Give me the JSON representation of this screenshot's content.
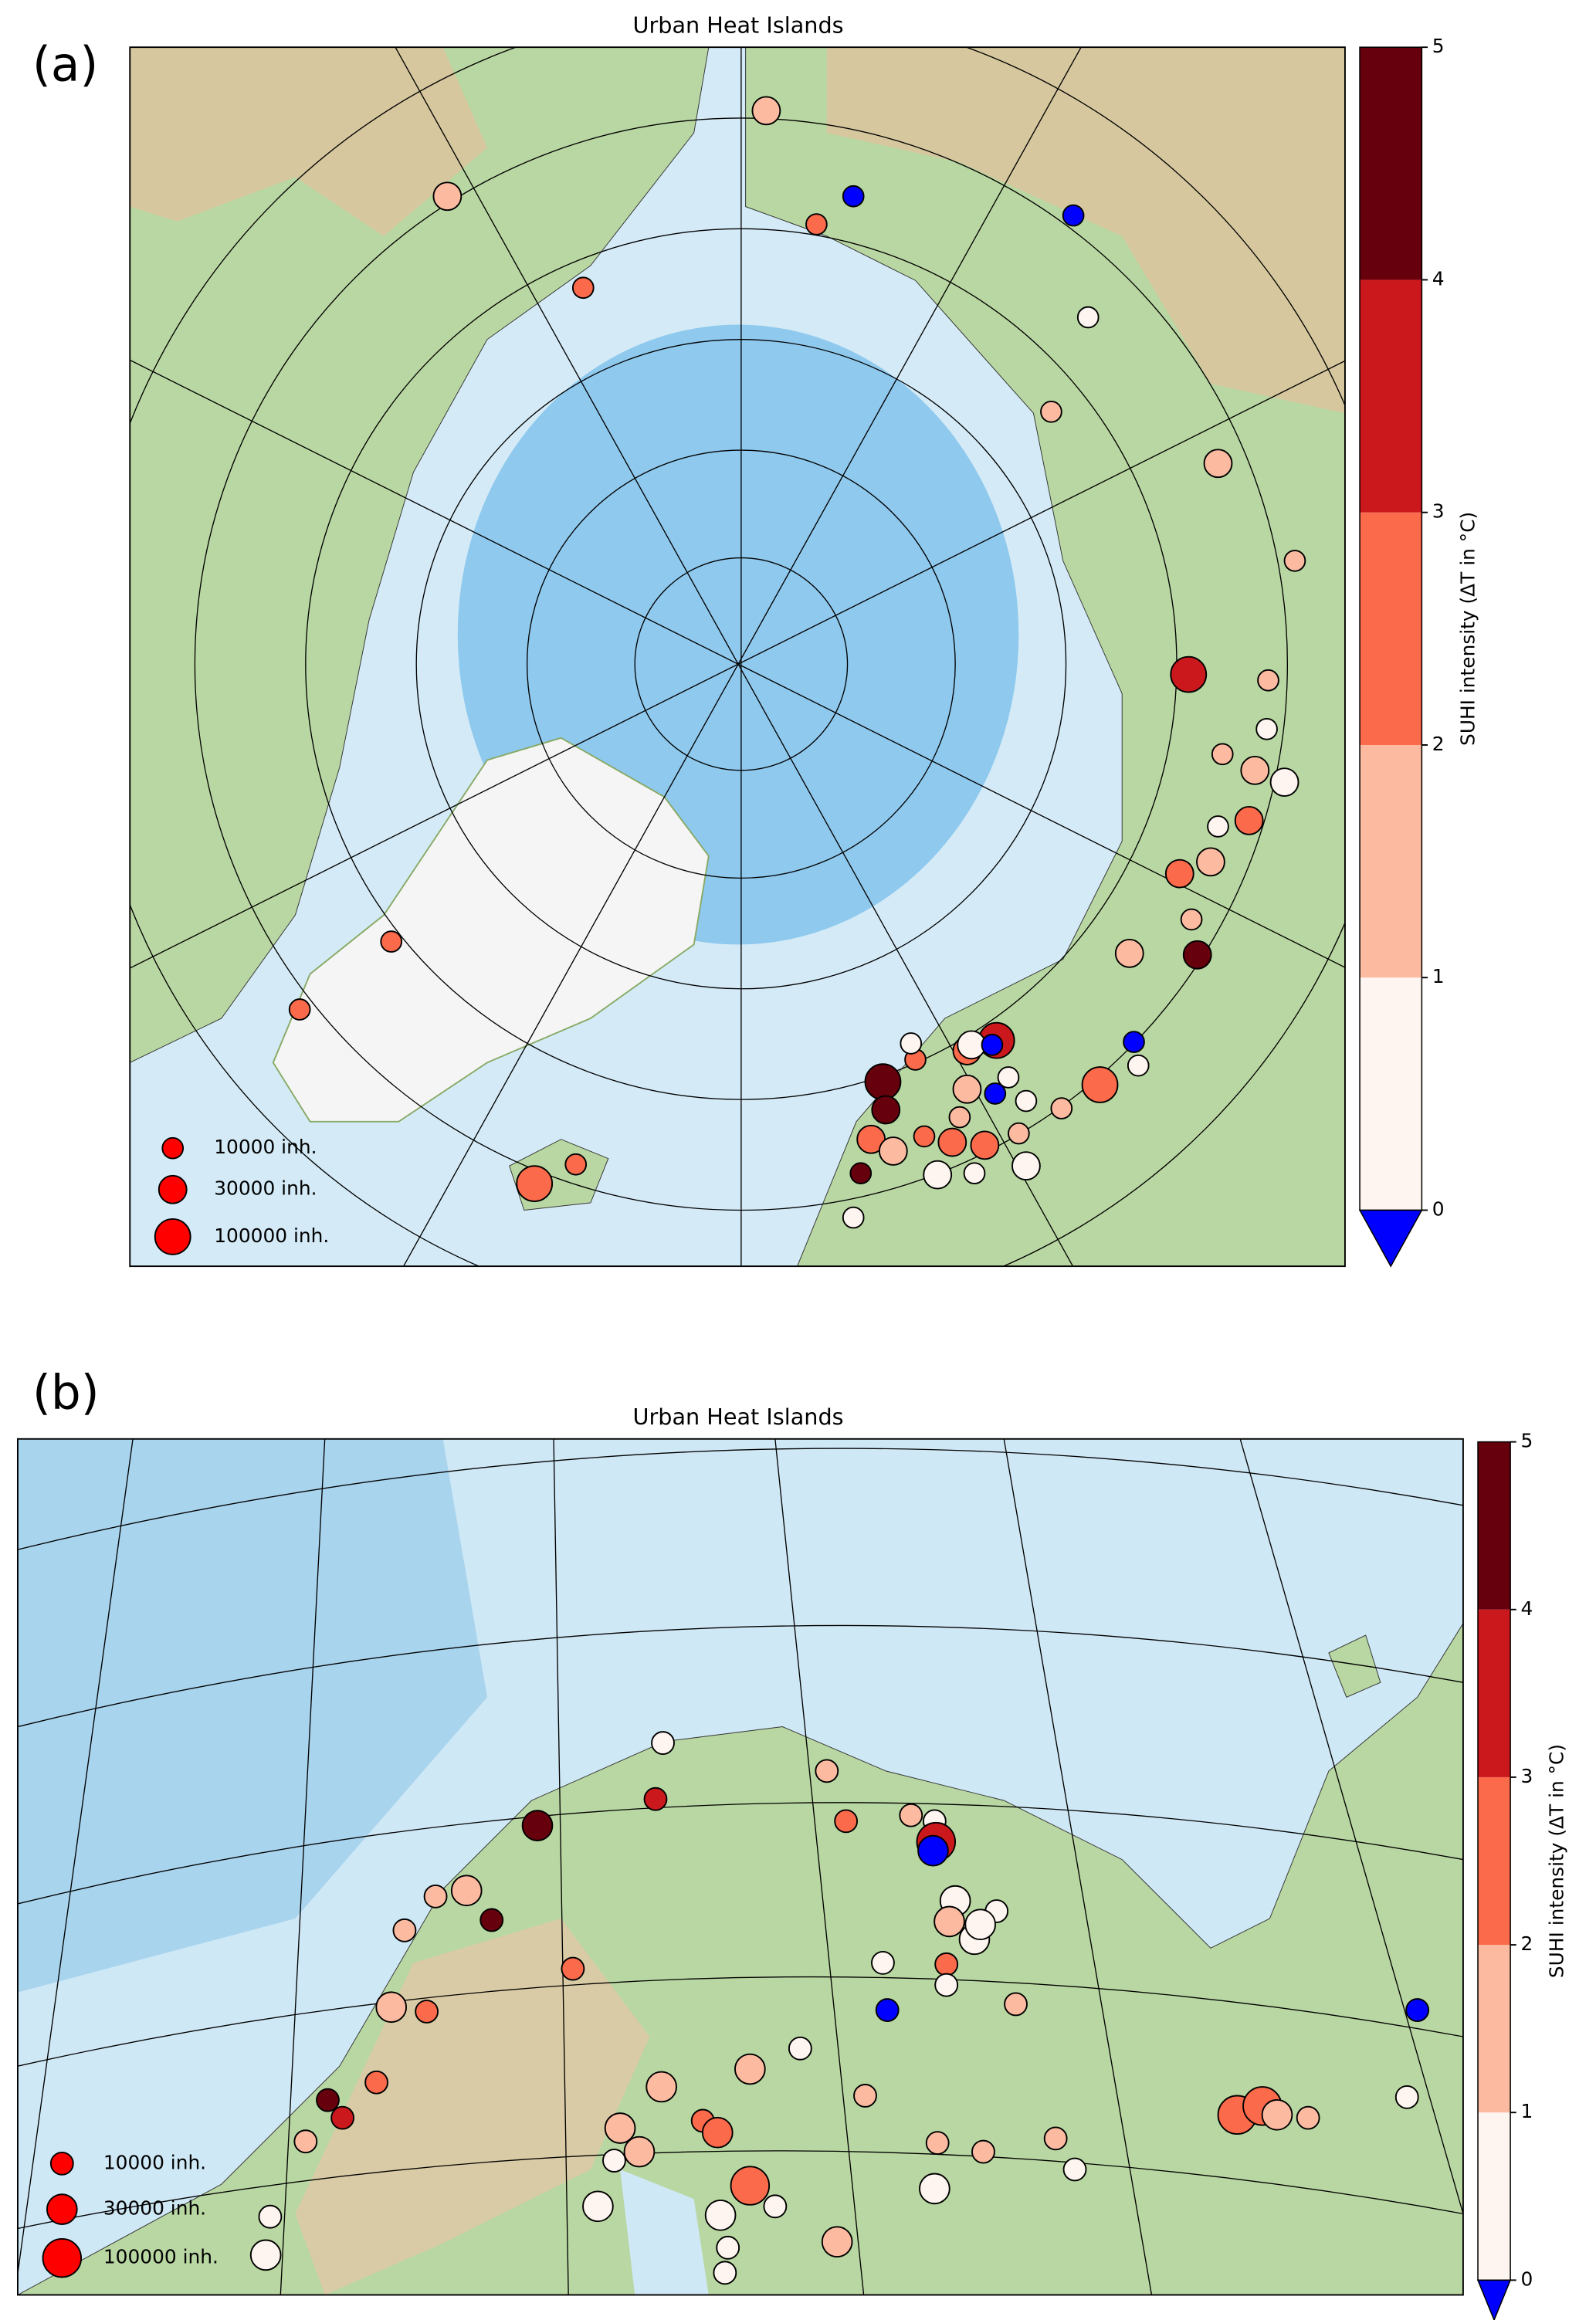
{
  "panels": [
    {
      "label": "(a)",
      "title": "Urban Heat Islands",
      "colorbar": {
        "label": "SUHI intensity (ΔT in °C)",
        "ticks": [
          0,
          1,
          2,
          3,
          4,
          5
        ],
        "colors": [
          "#fff5f0",
          "#fcbba1",
          "#fb6a4a",
          "#cb181d",
          "#67000d"
        ],
        "under_color": "#0000ff"
      },
      "legend": [
        {
          "value": 10000,
          "label": "10000 inh."
        },
        {
          "value": 30000,
          "label": "30000 inh."
        },
        {
          "value": 100000,
          "label": "100000 inh."
        }
      ],
      "cities": [
        {
          "suhi": 1.5,
          "population": 30000
        },
        {
          "suhi": 1.5,
          "population": 30000
        },
        {
          "suhi": -0.5,
          "population": 10000
        },
        {
          "suhi": 2.5,
          "population": 10000
        },
        {
          "suhi": -0.5,
          "population": 10000
        },
        {
          "suhi": 2.5,
          "population": 10000
        },
        {
          "suhi": 0.5,
          "population": 10000
        },
        {
          "suhi": 1.5,
          "population": 10000
        },
        {
          "suhi": 1.5,
          "population": 30000
        },
        {
          "suhi": 1.5,
          "population": 10000
        },
        {
          "suhi": 3.5,
          "population": 100000
        },
        {
          "suhi": 1.5,
          "population": 10000
        },
        {
          "suhi": 0.5,
          "population": 10000
        },
        {
          "suhi": 1.5,
          "population": 10000
        },
        {
          "suhi": 1.5,
          "population": 30000
        },
        {
          "suhi": 0.5,
          "population": 30000
        },
        {
          "suhi": 2.5,
          "population": 30000
        },
        {
          "suhi": 0.5,
          "population": 10000
        },
        {
          "suhi": 1.5,
          "population": 30000
        },
        {
          "suhi": 2.5,
          "population": 30000
        },
        {
          "suhi": 1.5,
          "population": 10000
        },
        {
          "suhi": 4.5,
          "population": 30000
        },
        {
          "suhi": 1.5,
          "population": 30000
        },
        {
          "suhi": -0.5,
          "population": 10000
        },
        {
          "suhi": 0.5,
          "population": 10000
        },
        {
          "suhi": 2.5,
          "population": 100000
        },
        {
          "suhi": 1.5,
          "population": 10000
        },
        {
          "suhi": 2.5,
          "population": 10000
        },
        {
          "suhi": 2.5,
          "population": 10000
        },
        {
          "suhi": 2.5,
          "population": 10000
        },
        {
          "suhi": 2.5,
          "population": 100000
        },
        {
          "suhi": 4.5,
          "population": 100000
        },
        {
          "suhi": 2.5,
          "population": 10000
        },
        {
          "suhi": 0.5,
          "population": 10000
        },
        {
          "suhi": 4.5,
          "population": 30000
        },
        {
          "suhi": 2.5,
          "population": 30000
        },
        {
          "suhi": 4.5,
          "population": 10000
        },
        {
          "suhi": 0.5,
          "population": 10000
        },
        {
          "suhi": 2.5,
          "population": 30000
        },
        {
          "suhi": 3.5,
          "population": 100000
        },
        {
          "suhi": 0.5,
          "population": 30000
        },
        {
          "suhi": -0.5,
          "population": 10000
        },
        {
          "suhi": 0.5,
          "population": 10000
        },
        {
          "suhi": -0.5,
          "population": 10000
        },
        {
          "suhi": 0.5,
          "population": 10000
        },
        {
          "suhi": 1.5,
          "population": 30000
        },
        {
          "suhi": 1.5,
          "population": 10000
        },
        {
          "suhi": 2.5,
          "population": 30000
        },
        {
          "suhi": 2.5,
          "population": 30000
        },
        {
          "suhi": 1.5,
          "population": 10000
        },
        {
          "suhi": 0.5,
          "population": 30000
        },
        {
          "suhi": 0.5,
          "population": 10000
        },
        {
          "suhi": 0.5,
          "population": 30000
        },
        {
          "suhi": 1.5,
          "population": 30000
        },
        {
          "suhi": 2.5,
          "population": 10000
        }
      ]
    },
    {
      "label": "(b)",
      "title": "Urban Heat Islands",
      "colorbar": {
        "label": "SUHI intensity (ΔT in °C)",
        "ticks": [
          0,
          1,
          2,
          3,
          4,
          5
        ],
        "colors": [
          "#fff5f0",
          "#fcbba1",
          "#fb6a4a",
          "#cb181d",
          "#67000d"
        ],
        "under_color": "#0000ff"
      },
      "legend": [
        {
          "value": 10000,
          "label": "10000 inh."
        },
        {
          "value": 30000,
          "label": "30000 inh."
        },
        {
          "value": 100000,
          "label": "100000 inh."
        }
      ],
      "cities": [
        {
          "suhi": 1.5,
          "population": 10000
        },
        {
          "suhi": 0.5,
          "population": 10000
        },
        {
          "suhi": 3.5,
          "population": 10000
        },
        {
          "suhi": 4.5,
          "population": 30000
        },
        {
          "suhi": 2.5,
          "population": 10000
        },
        {
          "suhi": 1.5,
          "population": 10000
        },
        {
          "suhi": 0.5,
          "population": 10000
        },
        {
          "suhi": 3.5,
          "population": 100000
        },
        {
          "suhi": -0.5,
          "population": 30000
        },
        {
          "suhi": 1.5,
          "population": 30000
        },
        {
          "suhi": 1.5,
          "population": 10000
        },
        {
          "suhi": 1.5,
          "population": 10000
        },
        {
          "suhi": 4.5,
          "population": 10000
        },
        {
          "suhi": 0.5,
          "population": 30000
        },
        {
          "suhi": 0.5,
          "population": 10000
        },
        {
          "suhi": 1.5,
          "population": 30000
        },
        {
          "suhi": 0.5,
          "population": 30000
        },
        {
          "suhi": 0.5,
          "population": 30000
        },
        {
          "suhi": 2.5,
          "population": 10000
        },
        {
          "suhi": 0.5,
          "population": 10000
        },
        {
          "suhi": 2.5,
          "population": 10000
        },
        {
          "suhi": 0.5,
          "population": 10000
        },
        {
          "suhi": -0.5,
          "population": 10000
        },
        {
          "suhi": 1.5,
          "population": 30000
        },
        {
          "suhi": 2.5,
          "population": 10000
        },
        {
          "suhi": 1.5,
          "population": 10000
        },
        {
          "suhi": -0.5,
          "population": 10000
        },
        {
          "suhi": 0.5,
          "population": 10000
        },
        {
          "suhi": 1.5,
          "population": 30000
        },
        {
          "suhi": 2.5,
          "population": 10000
        },
        {
          "suhi": 1.5,
          "population": 30000
        },
        {
          "suhi": 4.5,
          "population": 10000
        },
        {
          "suhi": 3.5,
          "population": 10000
        },
        {
          "suhi": 1.5,
          "population": 10000
        },
        {
          "suhi": 2.5,
          "population": 100000
        },
        {
          "suhi": 2.5,
          "population": 100000
        },
        {
          "suhi": 1.5,
          "population": 30000
        },
        {
          "suhi": 1.5,
          "population": 10000
        },
        {
          "suhi": 0.5,
          "population": 10000
        },
        {
          "suhi": 1.5,
          "population": 30000
        },
        {
          "suhi": 1.5,
          "population": 30000
        },
        {
          "suhi": 2.5,
          "population": 10000
        },
        {
          "suhi": 2.5,
          "population": 30000
        },
        {
          "suhi": 1.5,
          "population": 10000
        },
        {
          "suhi": 1.5,
          "population": 10000
        },
        {
          "suhi": 1.5,
          "population": 10000
        },
        {
          "suhi": 1.5,
          "population": 10000
        },
        {
          "suhi": 0.5,
          "population": 10000
        },
        {
          "suhi": 2.5,
          "population": 100000
        },
        {
          "suhi": 0.5,
          "population": 10000
        },
        {
          "suhi": 0.5,
          "population": 30000
        },
        {
          "suhi": 0.5,
          "population": 30000
        },
        {
          "suhi": 0.5,
          "population": 30000
        },
        {
          "suhi": 0.5,
          "population": 10000
        },
        {
          "suhi": 1.5,
          "population": 30000
        },
        {
          "suhi": 0.5,
          "population": 10000
        },
        {
          "suhi": 0.5,
          "population": 30000
        },
        {
          "suhi": 0.5,
          "population": 10000
        },
        {
          "suhi": 0.5,
          "population": 10000
        }
      ]
    }
  ]
}
